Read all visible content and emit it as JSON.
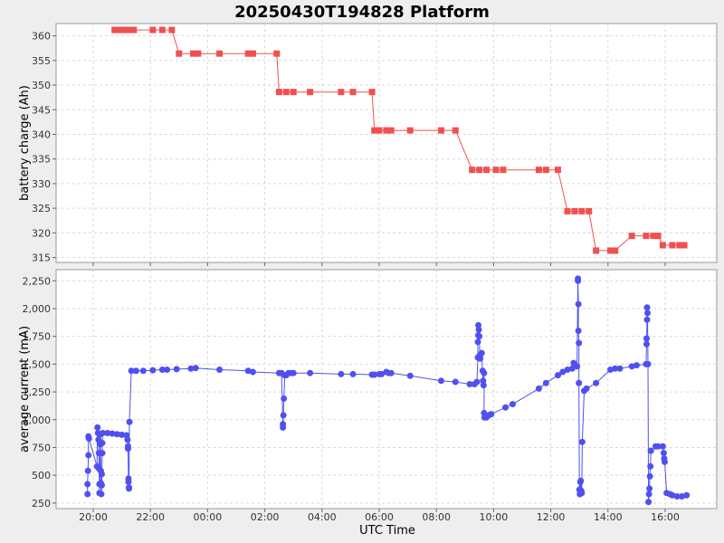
{
  "chart_data": {
    "title": "20250430T194828 Platform",
    "xlabel": "UTC Time",
    "x_ticks": [
      "20:00",
      "22:00",
      "00:00",
      "02:00",
      "04:00",
      "06:00",
      "08:00",
      "10:00",
      "12:00",
      "14:00",
      "16:00"
    ],
    "panels": [
      {
        "type": "line",
        "ylabel": "battery charge (Ah)",
        "ylim": [
          314,
          362.5
        ],
        "y_ticks": [
          "315",
          "320",
          "325",
          "330",
          "335",
          "340",
          "345",
          "350",
          "355",
          "360"
        ],
        "y_tick_values": [
          315,
          320,
          325,
          330,
          335,
          340,
          345,
          350,
          355,
          360
        ],
        "marker": "square",
        "color": "#f05050",
        "series": [
          {
            "values": [
              [
                "2025-04-30 20:45",
                361.2
              ],
              [
                "2025-04-30 20:55",
                361.2
              ],
              [
                "2025-04-30 21:05",
                361.2
              ],
              [
                "2025-04-30 21:15",
                361.2
              ],
              [
                "2025-04-30 21:25",
                361.2
              ],
              [
                "2025-04-30 22:05",
                361.2
              ],
              [
                "2025-04-30 22:25",
                361.2
              ],
              [
                "2025-04-30 22:45",
                361.2
              ],
              [
                "2025-04-30 23:00",
                356.4
              ],
              [
                "2025-04-30 23:30",
                356.4
              ],
              [
                "2025-04-30 23:40",
                356.4
              ],
              [
                "2025-05-01 00:25",
                356.4
              ],
              [
                "2025-05-01 01:25",
                356.4
              ],
              [
                "2025-05-01 01:35",
                356.4
              ],
              [
                "2025-05-01 02:25",
                356.4
              ],
              [
                "2025-05-01 02:30",
                348.6
              ],
              [
                "2025-05-01 02:45",
                348.6
              ],
              [
                "2025-05-01 03:00",
                348.6
              ],
              [
                "2025-05-01 03:35",
                348.6
              ],
              [
                "2025-05-01 04:40",
                348.6
              ],
              [
                "2025-05-01 05:05",
                348.6
              ],
              [
                "2025-05-01 05:45",
                348.6
              ],
              [
                "2025-05-01 05:50",
                340.8
              ],
              [
                "2025-05-01 06:00",
                340.8
              ],
              [
                "2025-05-01 06:15",
                340.8
              ],
              [
                "2025-05-01 06:25",
                340.8
              ],
              [
                "2025-05-01 07:05",
                340.8
              ],
              [
                "2025-05-01 08:10",
                340.8
              ],
              [
                "2025-05-01 08:40",
                340.8
              ],
              [
                "2025-05-01 09:15",
                332.8
              ],
              [
                "2025-05-01 09:30",
                332.8
              ],
              [
                "2025-05-01 09:45",
                332.8
              ],
              [
                "2025-05-01 10:05",
                332.8
              ],
              [
                "2025-05-01 10:20",
                332.8
              ],
              [
                "2025-05-01 11:35",
                332.8
              ],
              [
                "2025-05-01 11:50",
                332.8
              ],
              [
                "2025-05-01 12:15",
                332.8
              ],
              [
                "2025-05-01 12:35",
                324.4
              ],
              [
                "2025-05-01 12:50",
                324.4
              ],
              [
                "2025-05-01 13:05",
                324.4
              ],
              [
                "2025-05-01 13:20",
                324.4
              ],
              [
                "2025-05-01 13:35",
                316.4
              ],
              [
                "2025-05-01 14:05",
                316.4
              ],
              [
                "2025-05-01 14:15",
                316.4
              ],
              [
                "2025-05-01 14:50",
                319.4
              ],
              [
                "2025-05-01 15:20",
                319.4
              ],
              [
                "2025-05-01 15:35",
                319.4
              ],
              [
                "2025-05-01 15:45",
                319.4
              ],
              [
                "2025-05-01 15:55",
                317.5
              ],
              [
                "2025-05-01 16:15",
                317.5
              ],
              [
                "2025-05-01 16:30",
                317.5
              ],
              [
                "2025-05-01 16:40",
                317.5
              ]
            ]
          }
        ]
      },
      {
        "type": "line",
        "ylabel": "average current (mA)",
        "ylim": [
          200,
          2350
        ],
        "y_ticks": [
          "250",
          "500",
          "750",
          "1,000",
          "1,250",
          "1,500",
          "1,750",
          "2,000",
          "2,250"
        ],
        "y_tick_values": [
          250,
          500,
          750,
          1000,
          1250,
          1500,
          1750,
          2000,
          2250
        ],
        "marker": "circle",
        "color": "#5050f0",
        "series": [
          {
            "values": [
              [
                "2025-04-30 19:48",
                330
              ],
              [
                "2025-04-30 19:48",
                420
              ],
              [
                "2025-04-30 19:49",
                540
              ],
              [
                "2025-04-30 19:50",
                680
              ],
              [
                "2025-04-30 19:50",
                850
              ],
              [
                "2025-04-30 19:51",
                830
              ],
              [
                "2025-04-30 20:08",
                580
              ],
              [
                "2025-04-30 20:09",
                930
              ],
              [
                "2025-04-30 20:10",
                880
              ],
              [
                "2025-04-30 20:11",
                820
              ],
              [
                "2025-04-30 20:12",
                700
              ],
              [
                "2025-04-30 20:12",
                560
              ],
              [
                "2025-04-30 20:13",
                420
              ],
              [
                "2025-04-30 20:13",
                340
              ],
              [
                "2025-04-30 20:15",
                870
              ],
              [
                "2025-04-30 20:15",
                780
              ],
              [
                "2025-04-30 20:16",
                540
              ],
              [
                "2025-04-30 20:16",
                430
              ],
              [
                "2025-04-30 20:17",
                330
              ],
              [
                "2025-04-30 20:18",
                410
              ],
              [
                "2025-04-30 20:18",
                510
              ],
              [
                "2025-04-30 20:19",
                700
              ],
              [
                "2025-04-30 20:19",
                790
              ],
              [
                "2025-04-30 20:20",
                880
              ],
              [
                "2025-04-30 20:30",
                880
              ],
              [
                "2025-04-30 20:40",
                875
              ],
              [
                "2025-04-30 20:50",
                870
              ],
              [
                "2025-04-30 21:00",
                865
              ],
              [
                "2025-04-30 21:10",
                860
              ],
              [
                "2025-04-30 21:12",
                820
              ],
              [
                "2025-04-30 21:13",
                760
              ],
              [
                "2025-04-30 21:13",
                740
              ],
              [
                "2025-04-30 21:14",
                470
              ],
              [
                "2025-04-30 21:14",
                440
              ],
              [
                "2025-04-30 21:15",
                390
              ],
              [
                "2025-04-30 21:15",
                380
              ],
              [
                "2025-04-30 21:16",
                980
              ],
              [
                "2025-04-30 21:20",
                1440
              ],
              [
                "2025-04-30 21:30",
                1440
              ],
              [
                "2025-04-30 21:45",
                1440
              ],
              [
                "2025-04-30 22:05",
                1445
              ],
              [
                "2025-04-30 22:25",
                1450
              ],
              [
                "2025-04-30 22:35",
                1450
              ],
              [
                "2025-04-30 22:55",
                1455
              ],
              [
                "2025-04-30 23:25",
                1460
              ],
              [
                "2025-04-30 23:35",
                1465
              ],
              [
                "2025-05-01 00:25",
                1450
              ],
              [
                "2025-05-01 01:25",
                1440
              ],
              [
                "2025-05-01 01:35",
                1430
              ],
              [
                "2025-05-01 02:30",
                1420
              ],
              [
                "2025-05-01 02:35",
                1420
              ],
              [
                "2025-05-01 02:38",
                960
              ],
              [
                "2025-05-01 02:38",
                930
              ],
              [
                "2025-05-01 02:39",
                1040
              ],
              [
                "2025-05-01 02:40",
                1190
              ],
              [
                "2025-05-01 02:42",
                1400
              ],
              [
                "2025-05-01 02:45",
                1400
              ],
              [
                "2025-05-01 02:50",
                1420
              ],
              [
                "2025-05-01 02:55",
                1420
              ],
              [
                "2025-05-01 03:00",
                1420
              ],
              [
                "2025-05-01 03:35",
                1420
              ],
              [
                "2025-05-01 04:40",
                1410
              ],
              [
                "2025-05-01 05:05",
                1410
              ],
              [
                "2025-05-01 05:45",
                1405
              ],
              [
                "2025-05-01 05:50",
                1405
              ],
              [
                "2025-05-01 06:00",
                1410
              ],
              [
                "2025-05-01 06:05",
                1410
              ],
              [
                "2025-05-01 06:15",
                1430
              ],
              [
                "2025-05-01 06:20",
                1420
              ],
              [
                "2025-05-01 06:25",
                1420
              ],
              [
                "2025-05-01 07:05",
                1395
              ],
              [
                "2025-05-01 08:10",
                1350
              ],
              [
                "2025-05-01 08:40",
                1340
              ],
              [
                "2025-05-01 09:10",
                1320
              ],
              [
                "2025-05-01 09:20",
                1320
              ],
              [
                "2025-05-01 09:25",
                1340
              ],
              [
                "2025-05-01 09:27",
                1560
              ],
              [
                "2025-05-01 09:27",
                1700
              ],
              [
                "2025-05-01 09:28",
                1760
              ],
              [
                "2025-05-01 09:28",
                1850
              ],
              [
                "2025-05-01 09:29",
                1810
              ],
              [
                "2025-05-01 09:30",
                1750
              ],
              [
                "2025-05-01 09:31",
                1580
              ],
              [
                "2025-05-01 09:32",
                1550
              ],
              [
                "2025-05-01 09:35",
                1600
              ],
              [
                "2025-05-01 09:37",
                1440
              ],
              [
                "2025-05-01 09:38",
                1350
              ],
              [
                "2025-05-01 09:39",
                1310
              ],
              [
                "2025-05-01 09:40",
                1420
              ],
              [
                "2025-05-01 09:40",
                1060
              ],
              [
                "2025-05-01 09:41",
                1020
              ],
              [
                "2025-05-01 09:45",
                1020
              ],
              [
                "2025-05-01 09:50",
                1040
              ],
              [
                "2025-05-01 09:55",
                1050
              ],
              [
                "2025-05-01 10:25",
                1110
              ],
              [
                "2025-05-01 10:40",
                1140
              ],
              [
                "2025-05-01 11:35",
                1280
              ],
              [
                "2025-05-01 11:50",
                1330
              ],
              [
                "2025-05-01 12:15",
                1400
              ],
              [
                "2025-05-01 12:25",
                1430
              ],
              [
                "2025-05-01 12:35",
                1450
              ],
              [
                "2025-05-01 12:45",
                1460
              ],
              [
                "2025-05-01 12:48",
                1510
              ],
              [
                "2025-05-01 12:50",
                1490
              ],
              [
                "2025-05-01 12:55",
                1480
              ],
              [
                "2025-05-01 12:57",
                2270
              ],
              [
                "2025-05-01 12:57",
                2250
              ],
              [
                "2025-05-01 12:58",
                2040
              ],
              [
                "2025-05-01 12:58",
                1800
              ],
              [
                "2025-05-01 12:59",
                1690
              ],
              [
                "2025-05-01 12:59",
                1330
              ],
              [
                "2025-05-01 13:00",
                370
              ],
              [
                "2025-05-01 13:01",
                330
              ],
              [
                "2025-05-01 13:02",
                440
              ],
              [
                "2025-05-01 13:03",
                450
              ],
              [
                "2025-05-01 13:04",
                360
              ],
              [
                "2025-05-01 13:05",
                340
              ],
              [
                "2025-05-01 13:06",
                800
              ],
              [
                "2025-05-01 13:10",
                1260
              ],
              [
                "2025-05-01 13:15",
                1280
              ],
              [
                "2025-05-01 13:35",
                1330
              ],
              [
                "2025-05-01 14:05",
                1450
              ],
              [
                "2025-05-01 14:15",
                1460
              ],
              [
                "2025-05-01 14:25",
                1460
              ],
              [
                "2025-05-01 14:50",
                1480
              ],
              [
                "2025-05-01 15:00",
                1490
              ],
              [
                "2025-05-01 15:20",
                1500
              ],
              [
                "2025-05-01 15:21",
                1680
              ],
              [
                "2025-05-01 15:21",
                1730
              ],
              [
                "2025-05-01 15:22",
                1900
              ],
              [
                "2025-05-01 15:22",
                2010
              ],
              [
                "2025-05-01 15:23",
                1960
              ],
              [
                "2025-05-01 15:24",
                1500
              ],
              [
                "2025-05-01 15:25",
                260
              ],
              [
                "2025-05-01 15:26",
                330
              ],
              [
                "2025-05-01 15:27",
                380
              ],
              [
                "2025-05-01 15:28",
                490
              ],
              [
                "2025-05-01 15:29",
                580
              ],
              [
                "2025-05-01 15:30",
                720
              ],
              [
                "2025-05-01 15:40",
                760
              ],
              [
                "2025-05-01 15:45",
                760
              ],
              [
                "2025-05-01 15:55",
                760
              ],
              [
                "2025-05-01 15:57",
                700
              ],
              [
                "2025-05-01 15:58",
                650
              ],
              [
                "2025-05-01 15:59",
                620
              ],
              [
                "2025-05-01 16:03",
                340
              ],
              [
                "2025-05-01 16:10",
                330
              ],
              [
                "2025-05-01 16:15",
                320
              ],
              [
                "2025-05-01 16:25",
                310
              ],
              [
                "2025-05-01 16:35",
                310
              ],
              [
                "2025-05-01 16:45",
                320
              ]
            ]
          }
        ]
      }
    ]
  }
}
